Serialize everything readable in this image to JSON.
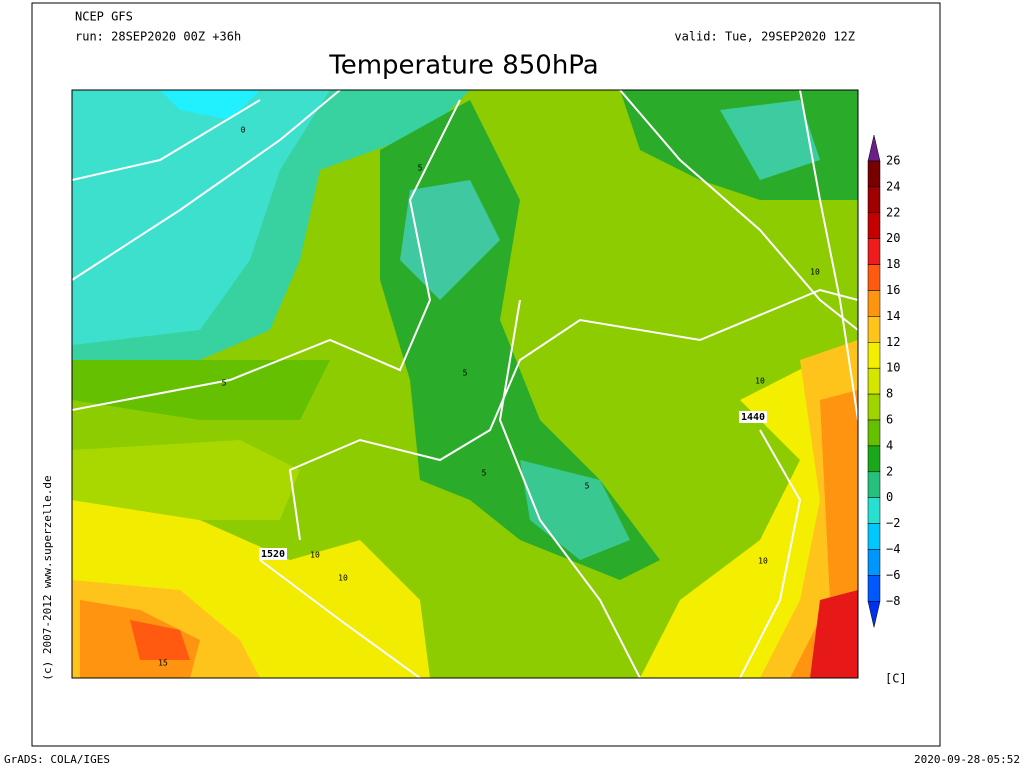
{
  "header": {
    "model": "NCEP GFS",
    "run": "run: 28SEP2020 00Z +36h",
    "valid": "valid: Tue, 29SEP2020 12Z",
    "title": "Temperature 850hPa"
  },
  "colorbar": {
    "labels": [
      "26",
      "24",
      "22",
      "20",
      "18",
      "16",
      "14",
      "12",
      "10",
      "8",
      "6",
      "4",
      "2",
      "0",
      "−2",
      "−4",
      "−6",
      "−8"
    ],
    "colors": [
      "#6a2088",
      "#780000",
      "#a00000",
      "#c40000",
      "#ee1c1c",
      "#ff5a10",
      "#ff9410",
      "#ffc41c",
      "#f4ee00",
      "#d4e600",
      "#a0d400",
      "#64c000",
      "#1aa81a",
      "#24c07c",
      "#28e0d2",
      "#00c8ff",
      "#0096ff",
      "#0058ff",
      "#0030f0"
    ],
    "unit": "[C]"
  },
  "contour_labels": [
    "0",
    "5",
    "5",
    "5",
    "5",
    "5",
    "10",
    "10",
    "10",
    "10",
    "10",
    "15",
    "1440",
    "1520"
  ],
  "credit": "(c) 2007-2012  www.superzelle.de",
  "footer": {
    "left": "GrADS: COLA/IGES",
    "right": "2020-09-28-05:52"
  }
}
